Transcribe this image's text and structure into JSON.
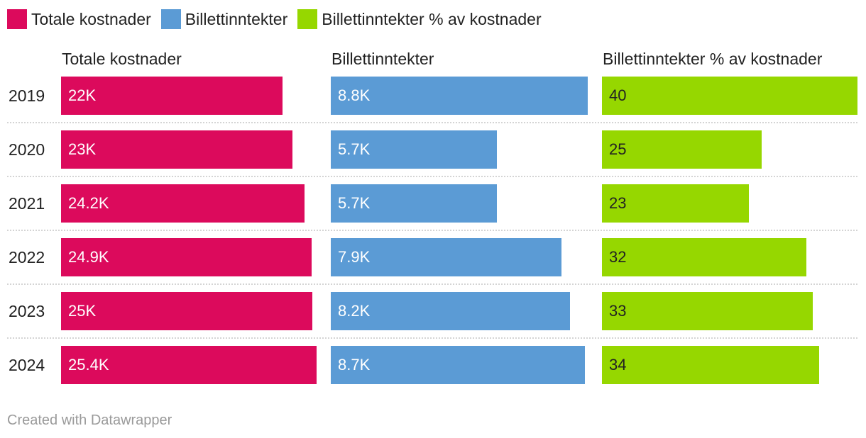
{
  "legend": [
    {
      "label": "Totale kostnader",
      "color": "#dc0a5c"
    },
    {
      "label": "Billettinntekter",
      "color": "#5b9bd5"
    },
    {
      "label": "Billettinntekter % av kostnader",
      "color": "#96d700"
    }
  ],
  "footer": "Created with Datawrapper",
  "chart_data": {
    "type": "bar",
    "orientation": "horizontal",
    "categories": [
      "2019",
      "2020",
      "2021",
      "2022",
      "2023",
      "2024"
    ],
    "series": [
      {
        "name": "Totale kostnader",
        "color": "#dc0a5c",
        "label_color": "#ffffff",
        "values": [
          22000,
          23000,
          24200,
          24900,
          25000,
          25400
        ],
        "labels": [
          "22K",
          "23K",
          "24.2K",
          "24.9K",
          "25K",
          "25.4K"
        ],
        "xlim": [
          0,
          25400
        ]
      },
      {
        "name": "Billettinntekter",
        "color": "#5b9bd5",
        "label_color": "#ffffff",
        "values": [
          8800,
          5700,
          5700,
          7900,
          8200,
          8700
        ],
        "labels": [
          "8.8K",
          "5.7K",
          "5.7K",
          "7.9K",
          "8.2K",
          "8.7K"
        ],
        "xlim": [
          0,
          8800
        ]
      },
      {
        "name": "Billettinntekter % av kostnader",
        "color": "#96d700",
        "label_color": "#222222",
        "values": [
          40,
          25,
          23,
          32,
          33,
          34
        ],
        "labels": [
          "40",
          "25",
          "23",
          "32",
          "33",
          "34"
        ],
        "xlim": [
          0,
          40
        ]
      }
    ]
  }
}
